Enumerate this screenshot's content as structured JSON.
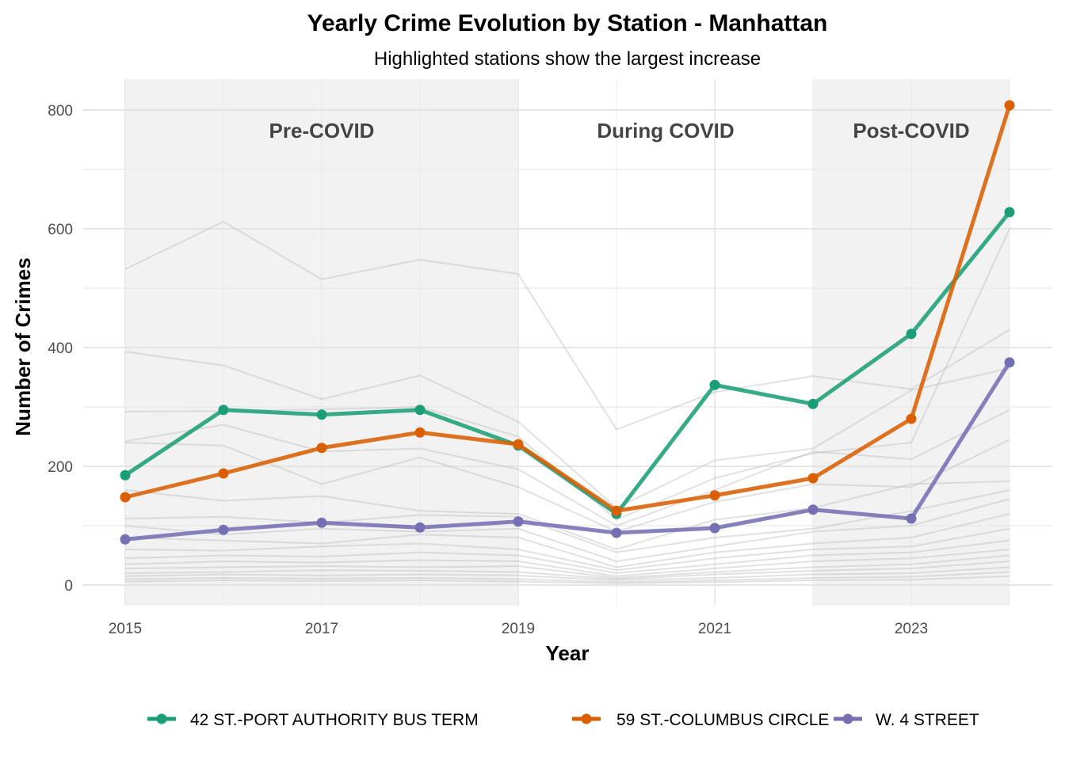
{
  "chart_data": {
    "type": "line",
    "title": "Yearly Crime Evolution by Station - Manhattan",
    "subtitle": "Highlighted stations show the largest increase",
    "xlabel": "Year",
    "ylabel": "Number of Crimes",
    "x": [
      2015,
      2016,
      2017,
      2018,
      2019,
      2020,
      2021,
      2022,
      2023,
      2024
    ],
    "x_ticks": [
      "2015",
      "2017",
      "2019",
      "2021",
      "2023"
    ],
    "y_ticks": [
      "0",
      "200",
      "400",
      "600",
      "800"
    ],
    "xlim": [
      2014.8,
      2024.2
    ],
    "ylim": [
      -35,
      850
    ],
    "grid": true,
    "legend_position": "bottom",
    "periods": [
      {
        "label": "Pre-COVID",
        "start": 2015,
        "end": 2019,
        "shaded": true
      },
      {
        "label": "During COVID",
        "start": 2019,
        "end": 2022,
        "shaded": false
      },
      {
        "label": "Post-COVID",
        "start": 2022,
        "end": 2024,
        "shaded": true
      }
    ],
    "series": [
      {
        "name": "42 ST.-PORT AUTHORITY BUS TERM",
        "color": "#1B9E77",
        "values": [
          185,
          295,
          287,
          295,
          235,
          120,
          337,
          305,
          423,
          628
        ]
      },
      {
        "name": "59 ST.-COLUMBUS CIRCLE",
        "color": "#D95F02",
        "values": [
          148,
          188,
          231,
          257,
          237,
          125,
          151,
          180,
          280,
          808
        ]
      },
      {
        "name": "W. 4 STREET",
        "color": "#7570B3",
        "values": [
          77,
          93,
          105,
          97,
          107,
          88,
          96,
          127,
          112,
          375
        ]
      }
    ],
    "background_series_color": "#bdbdbd",
    "background_series": [
      [
        532,
        612,
        515,
        548,
        524,
        262,
        325,
        352,
        330,
        430
      ],
      [
        393,
        370,
        313,
        353,
        275,
        130,
        210,
        230,
        328,
        365
      ],
      [
        292,
        293,
        296,
        300,
        250,
        110,
        180,
        222,
        240,
        600
      ],
      [
        242,
        270,
        225,
        230,
        195,
        100,
        160,
        225,
        212,
        295
      ],
      [
        240,
        235,
        170,
        215,
        165,
        90,
        140,
        170,
        165,
        245
      ],
      [
        160,
        142,
        150,
        125,
        120,
        60,
        110,
        130,
        170,
        175
      ],
      [
        112,
        115,
        105,
        118,
        115,
        55,
        80,
        95,
        125,
        160
      ],
      [
        100,
        85,
        95,
        90,
        95,
        40,
        65,
        90,
        100,
        145
      ],
      [
        80,
        75,
        70,
        85,
        80,
        30,
        55,
        70,
        80,
        120
      ],
      [
        60,
        58,
        65,
        70,
        60,
        25,
        45,
        60,
        65,
        95
      ],
      [
        45,
        50,
        48,
        55,
        50,
        20,
        35,
        50,
        55,
        75
      ],
      [
        35,
        40,
        38,
        42,
        40,
        15,
        28,
        40,
        45,
        60
      ],
      [
        28,
        30,
        32,
        30,
        32,
        12,
        22,
        30,
        35,
        50
      ],
      [
        20,
        22,
        25,
        24,
        22,
        10,
        18,
        24,
        28,
        40
      ],
      [
        15,
        18,
        16,
        18,
        16,
        8,
        12,
        18,
        20,
        30
      ],
      [
        10,
        12,
        11,
        12,
        10,
        5,
        8,
        12,
        14,
        22
      ],
      [
        6,
        8,
        7,
        8,
        6,
        3,
        5,
        8,
        9,
        15
      ]
    ]
  }
}
